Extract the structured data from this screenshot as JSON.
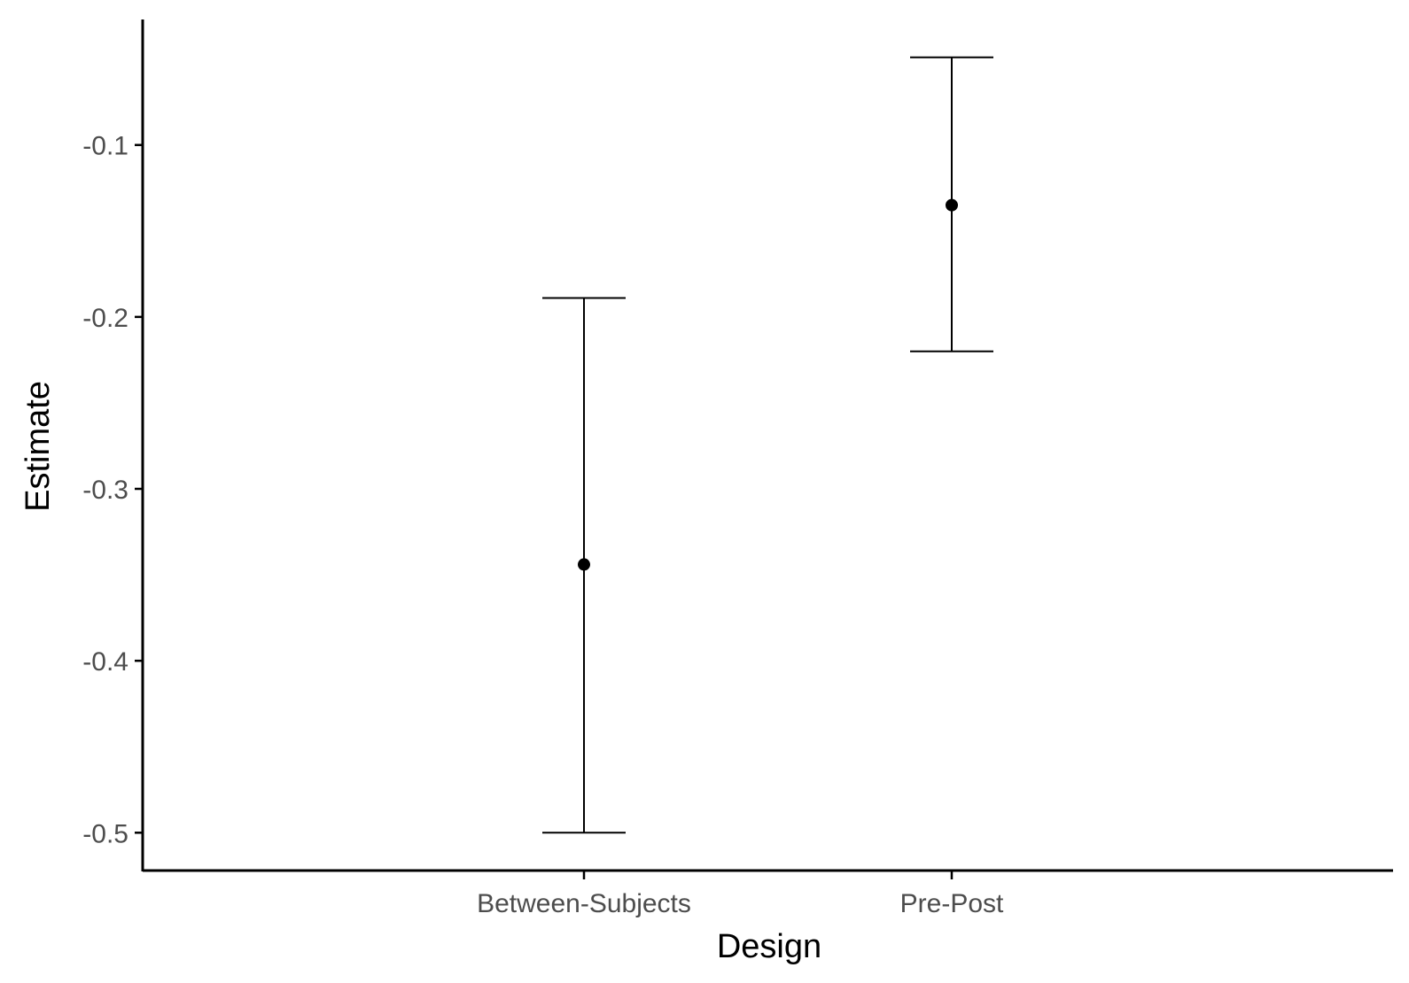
{
  "chart_data": {
    "type": "errorbar",
    "xlabel": "Design",
    "ylabel": "Estimate",
    "categories": [
      "Between-Subjects",
      "Pre-Post"
    ],
    "estimates": [
      -0.344,
      -0.135
    ],
    "lower": [
      -0.5,
      -0.22
    ],
    "upper": [
      -0.189,
      -0.049
    ],
    "yticks": [
      -0.5,
      -0.4,
      -0.3,
      -0.2,
      -0.1
    ],
    "ytick_labels": [
      "-0.5",
      "-0.4",
      "-0.3",
      "-0.2",
      "-0.1"
    ],
    "ylim": [
      -0.522,
      -0.027
    ],
    "grid": false,
    "legend": "none",
    "colors": {
      "axis": "#000000",
      "marks": "#000000",
      "tick_labels": "#4d4d4d"
    }
  }
}
